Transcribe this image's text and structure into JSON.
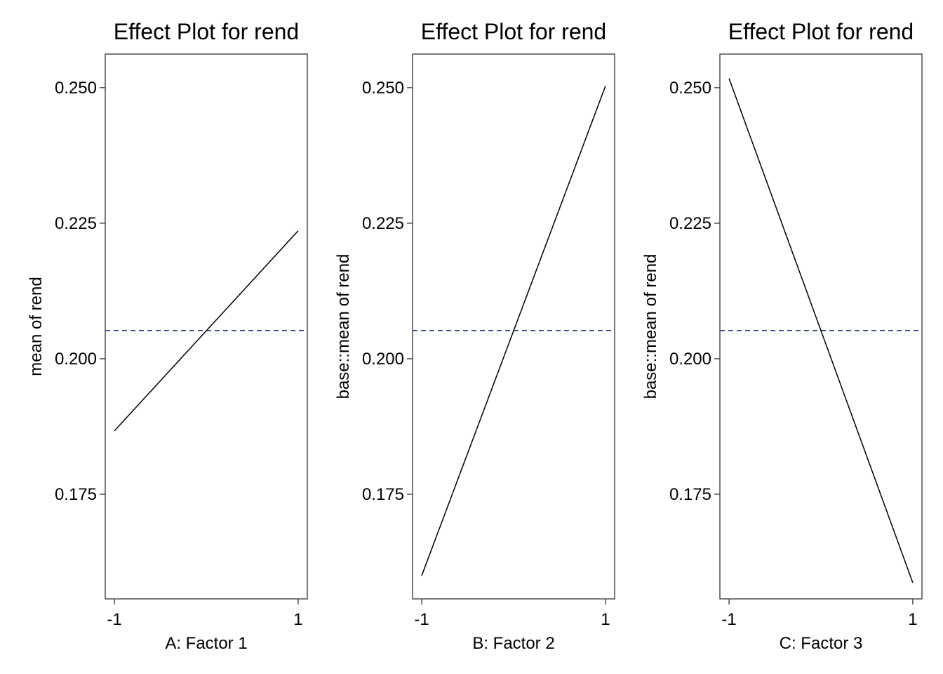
{
  "chart_data": [
    {
      "type": "line",
      "title": "Effect Plot for rend",
      "xlabel": "A: Factor 1",
      "ylabel": "mean of  rend",
      "x": [
        -1,
        1
      ],
      "x_tick_labels": [
        "-1",
        "1"
      ],
      "values": [
        0.1867,
        0.2236
      ],
      "reference_line": 0.2052,
      "y_tick_labels": [
        "0.175",
        "0.200",
        "0.225",
        "0.250"
      ],
      "y_ticks": [
        0.175,
        0.2,
        0.225,
        0.25
      ],
      "ylim": [
        0.1557,
        0.2562
      ],
      "xlim": [
        -1.1,
        1.1
      ],
      "grid": false
    },
    {
      "type": "line",
      "title": "Effect Plot for rend",
      "xlabel": "B: Factor 2",
      "ylabel": "base::mean of  rend",
      "x": [
        -1,
        1
      ],
      "x_tick_labels": [
        "-1",
        "1"
      ],
      "values": [
        0.16,
        0.2503
      ],
      "reference_line": 0.2052,
      "y_tick_labels": [
        "0.175",
        "0.200",
        "0.225",
        "0.250"
      ],
      "y_ticks": [
        0.175,
        0.2,
        0.225,
        0.25
      ],
      "ylim": [
        0.1557,
        0.2562
      ],
      "xlim": [
        -1.1,
        1.1
      ],
      "grid": false
    },
    {
      "type": "line",
      "title": "Effect Plot for rend",
      "xlabel": "C: Factor 3",
      "ylabel": "base::mean of  rend",
      "x": [
        -1,
        1
      ],
      "x_tick_labels": [
        "-1",
        "1"
      ],
      "values": [
        0.2517,
        0.1587
      ],
      "reference_line": 0.2052,
      "y_tick_labels": [
        "0.175",
        "0.200",
        "0.225",
        "0.250"
      ],
      "y_ticks": [
        0.175,
        0.2,
        0.225,
        0.25
      ],
      "ylim": [
        0.1557,
        0.2562
      ],
      "xlim": [
        -1.1,
        1.1
      ],
      "grid": false
    }
  ],
  "colors": {
    "line": "#000000",
    "reference_line": "#1f3a6b",
    "panel_border": "#333333",
    "axis_text": "#000000"
  }
}
